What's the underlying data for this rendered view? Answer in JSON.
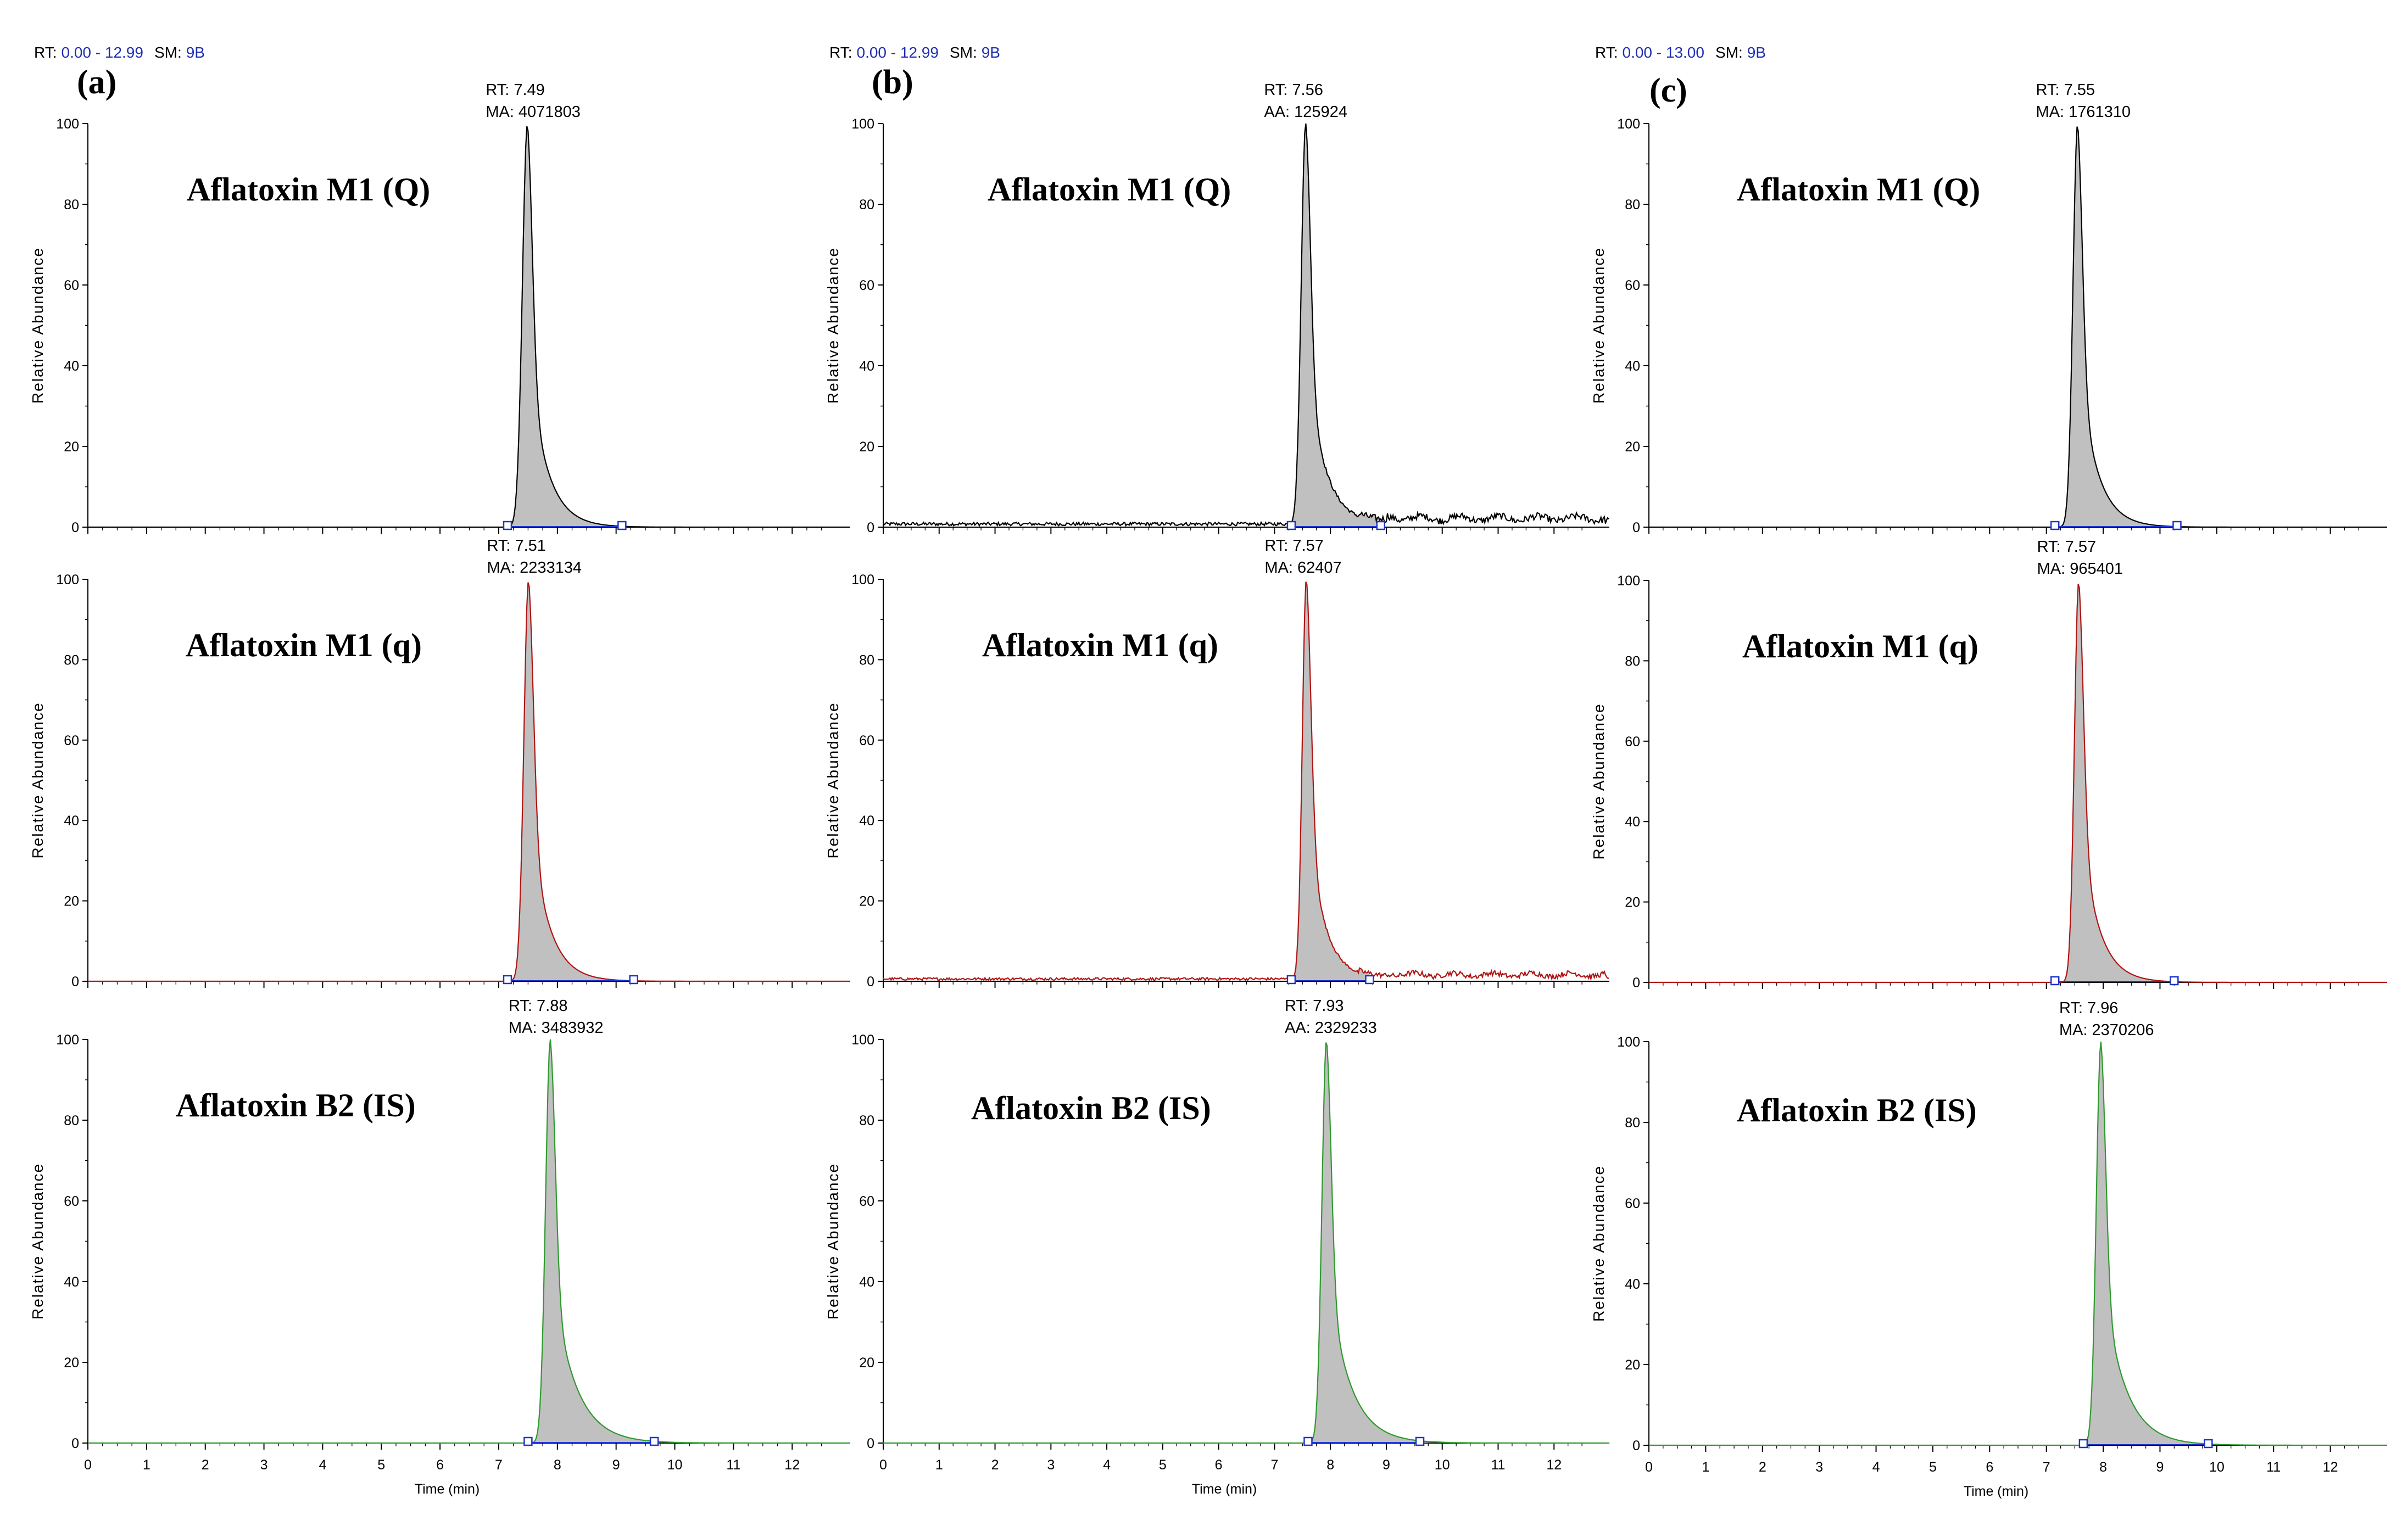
{
  "figure": {
    "x_axis_title": "Time (min)",
    "y_axis_title": "Relative Abundance",
    "x_ticks": [
      "0",
      "1",
      "2",
      "3",
      "4",
      "5",
      "6",
      "7",
      "8",
      "9",
      "10",
      "11",
      "12"
    ],
    "y_ticks": [
      "0",
      "20",
      "40",
      "60",
      "80",
      "100"
    ]
  },
  "columns": [
    {
      "label": "(a)",
      "rt_prefix": "RT:",
      "rt_range": "0.00 - 12.99",
      "sm_prefix": "SM:",
      "sm_value": "9B",
      "show_rt_header": true
    },
    {
      "label": "(b)",
      "rt_prefix": "RT:",
      "rt_range": "0.00 - 12.99",
      "sm_prefix": "SM:",
      "sm_value": "9B",
      "show_rt_header": true
    },
    {
      "label": "(c)",
      "rt_prefix": "RT:",
      "rt_range": "0.00 - 13.00",
      "sm_prefix": "SM:",
      "sm_value": "9B",
      "show_rt_header": true
    }
  ],
  "colors": {
    "quantifier_trace": "#000000",
    "qualifier_trace": "#b01515",
    "internal_standard_trace": "#2f9a2f",
    "peak_fill": "#c0c0c0",
    "baseline_marker": "#1f35c9",
    "rt_header_value": "#1f2fb0"
  },
  "chart_data": [
    {
      "type": "line",
      "panel": "a",
      "row": 1,
      "compound": "Aflatoxin M1 (Q)",
      "trace": "quantifier",
      "xlim": [
        0,
        12.99
      ],
      "ylim": [
        0,
        100
      ],
      "xlabel": "",
      "ylabel": "Relative Abundance",
      "peak_rt": 7.49,
      "peak_label_line1": "RT: 7.49",
      "peak_label_line2": "MA: 4071803",
      "integration_start": 7.15,
      "integration_end": 9.1,
      "rise_width": 0.18,
      "tail_tau": 0.3,
      "noise": 0.1
    },
    {
      "type": "line",
      "panel": "a",
      "row": 2,
      "compound": "Aflatoxin M1 (q)",
      "trace": "qualifier",
      "xlim": [
        0,
        12.99
      ],
      "ylim": [
        0,
        100
      ],
      "xlabel": "",
      "ylabel": "Relative Abundance",
      "peak_rt": 7.51,
      "peak_label_line1": "RT: 7.51",
      "peak_label_line2": "MA: 2233134",
      "integration_start": 7.15,
      "integration_end": 9.3,
      "rise_width": 0.17,
      "tail_tau": 0.3,
      "noise": 0.1
    },
    {
      "type": "line",
      "panel": "a",
      "row": 3,
      "compound": "Aflatoxin B2 (IS)",
      "trace": "internal_standard",
      "xlim": [
        0,
        12.99
      ],
      "ylim": [
        0,
        100
      ],
      "xlabel": "Time (min)",
      "ylabel": "Relative Abundance",
      "peak_rt": 7.88,
      "peak_label_line1": "RT: 7.88",
      "peak_label_line2": "MA: 3483932",
      "integration_start": 7.5,
      "integration_end": 9.65,
      "rise_width": 0.17,
      "tail_tau": 0.38,
      "noise": 0.1
    },
    {
      "type": "line",
      "panel": "b",
      "row": 1,
      "compound": "Aflatoxin M1 (Q)",
      "trace": "quantifier",
      "xlim": [
        0,
        12.99
      ],
      "ylim": [
        0,
        100
      ],
      "xlabel": "",
      "ylabel": "Relative Abundance",
      "peak_rt": 7.56,
      "peak_label_line1": "RT: 7.56",
      "peak_label_line2": "AA: 125924",
      "integration_start": 7.3,
      "integration_end": 8.9,
      "rise_width": 0.17,
      "tail_tau": 0.3,
      "noise": 2.0
    },
    {
      "type": "line",
      "panel": "b",
      "row": 2,
      "compound": "Aflatoxin M1 (q)",
      "trace": "qualifier",
      "xlim": [
        0,
        12.99
      ],
      "ylim": [
        0,
        100
      ],
      "xlabel": "",
      "ylabel": "Relative Abundance",
      "peak_rt": 7.57,
      "peak_label_line1": "RT: 7.57",
      "peak_label_line2": "MA: 62407",
      "integration_start": 7.3,
      "integration_end": 8.7,
      "rise_width": 0.15,
      "tail_tau": 0.28,
      "noise": 1.5
    },
    {
      "type": "line",
      "panel": "b",
      "row": 3,
      "compound": "Aflatoxin B2 (IS)",
      "trace": "internal_standard",
      "xlim": [
        0,
        12.99
      ],
      "ylim": [
        0,
        100
      ],
      "xlabel": "Time (min)",
      "ylabel": "Relative Abundance",
      "peak_rt": 7.93,
      "peak_label_line1": "RT: 7.93",
      "peak_label_line2": "AA: 2329233",
      "integration_start": 7.6,
      "integration_end": 9.6,
      "rise_width": 0.17,
      "tail_tau": 0.38,
      "noise": 0.1
    },
    {
      "type": "line",
      "panel": "c",
      "row": 1,
      "compound": "Aflatoxin M1 (Q)",
      "trace": "quantifier",
      "xlim": [
        0,
        13.0
      ],
      "ylim": [
        0,
        100
      ],
      "xlabel": "",
      "ylabel": "Relative Abundance",
      "peak_rt": 7.55,
      "peak_label_line1": "RT: 7.55",
      "peak_label_line2": "MA: 1761310",
      "integration_start": 7.15,
      "integration_end": 9.3,
      "rise_width": 0.17,
      "tail_tau": 0.3,
      "noise": 0.3
    },
    {
      "type": "line",
      "panel": "c",
      "row": 2,
      "compound": "Aflatoxin M1 (q)",
      "trace": "qualifier",
      "xlim": [
        0,
        13.0
      ],
      "ylim": [
        0,
        100
      ],
      "xlabel": "",
      "ylabel": "Relative Abundance",
      "peak_rt": 7.57,
      "peak_label_line1": "RT: 7.57",
      "peak_label_line2": "MA: 965401",
      "integration_start": 7.15,
      "integration_end": 9.25,
      "rise_width": 0.16,
      "tail_tau": 0.3,
      "noise": 0.2
    },
    {
      "type": "line",
      "panel": "c",
      "row": 3,
      "compound": "Aflatoxin B2 (IS)",
      "trace": "internal_standard",
      "xlim": [
        0,
        13.0
      ],
      "ylim": [
        0,
        100
      ],
      "xlabel": "Time (min)",
      "ylabel": "Relative Abundance",
      "peak_rt": 7.96,
      "peak_label_line1": "RT: 7.96",
      "peak_label_line2": "MA: 2370206",
      "integration_start": 7.65,
      "integration_end": 9.85,
      "rise_width": 0.17,
      "tail_tau": 0.38,
      "noise": 0.1
    }
  ]
}
